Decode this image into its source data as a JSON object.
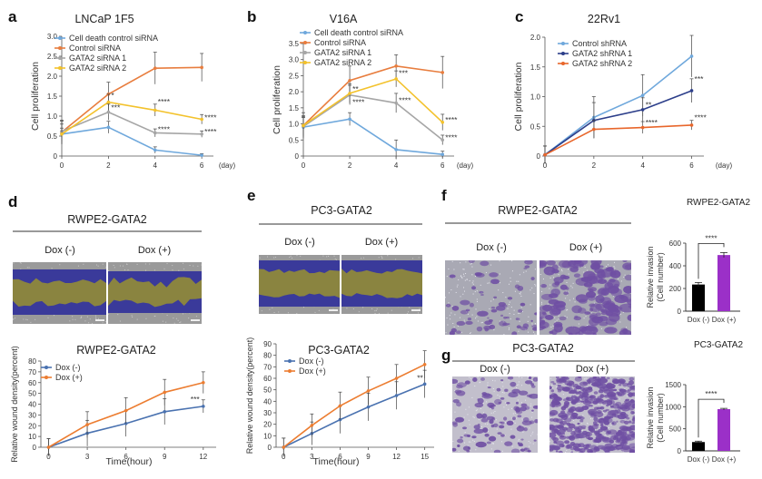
{
  "panels": {
    "a": "a",
    "b": "b",
    "c": "c",
    "d": "d",
    "e": "e",
    "f": "f",
    "g": "g"
  },
  "images": {
    "d": {
      "title": "RWPE2-GATA2",
      "left": "Dox (-)",
      "right": "Dox (+)",
      "colors": {
        "gap": "#8a8440",
        "edge": "#3a3a9a",
        "bg": "#9a9a9a"
      }
    },
    "e": {
      "title": "PC3-GATA2",
      "left": "Dox (-)",
      "right": "Dox (+)",
      "colors": {
        "gap": "#8a8440",
        "edge": "#3a3a9a",
        "bg": "#9a9a9a"
      }
    },
    "f": {
      "title": "RWPE2-GATA2",
      "left": "Dox (-)",
      "right": "Dox (+)",
      "colors": {
        "stain": "#6f4fa3",
        "bg": "#a9a9b4"
      }
    },
    "g": {
      "title": "PC3-GATA2",
      "left": "Dox (-)",
      "right": "Dox (+)",
      "colors": {
        "stain": "#6f4fa3",
        "bg": "#c2bfcc"
      }
    }
  },
  "chart_data": [
    {
      "id": "a",
      "type": "line",
      "title": "LNCaP 1F5",
      "xlabel": "(day)",
      "ylabel": "Cell proliferation",
      "x": [
        0,
        2,
        4,
        6
      ],
      "xlim": [
        0,
        6.5
      ],
      "ylim": [
        0,
        3.0
      ],
      "yticks": [
        "0",
        "0.5",
        "1.0",
        "1.5",
        "2.0",
        "2.5",
        "3.0"
      ],
      "xticks": [
        "0",
        "2",
        "4",
        "6"
      ],
      "legend_position": "top-left",
      "series": [
        {
          "name": "Cell death control siRNA",
          "color": "#6fa8dc",
          "values": [
            0.55,
            0.72,
            0.15,
            0.02
          ],
          "err": [
            0.15,
            0.15,
            0.08,
            0.04
          ]
        },
        {
          "name": "Control siRNA",
          "color": "#e87d3e",
          "values": [
            0.6,
            1.55,
            2.2,
            2.22
          ],
          "err": [
            0.3,
            0.3,
            0.4,
            0.35
          ]
        },
        {
          "name": "GATA2 siRNA 1",
          "color": "#a6a6a6",
          "values": [
            0.62,
            1.1,
            0.58,
            0.55
          ],
          "err": [
            0.25,
            0.2,
            0.1,
            0.08
          ]
        },
        {
          "name": "GATA2 siRNA 2",
          "color": "#f3c22c",
          "values": [
            0.55,
            1.35,
            1.15,
            0.92
          ],
          "err": [
            0.25,
            0.2,
            0.15,
            0.12
          ]
        }
      ],
      "annotations": [
        {
          "x": 2,
          "y": 1.45,
          "text": "*"
        },
        {
          "x": 2,
          "y": 1.15,
          "text": "***"
        },
        {
          "x": 4,
          "y": 1.3,
          "text": "****"
        },
        {
          "x": 4,
          "y": 0.6,
          "text": "****"
        },
        {
          "x": 6,
          "y": 0.9,
          "text": "****"
        },
        {
          "x": 6,
          "y": 0.55,
          "text": "****"
        }
      ]
    },
    {
      "id": "b",
      "type": "line",
      "title": "V16A",
      "xlabel": "(day)",
      "ylabel": "Cell proliferation",
      "x": [
        0,
        2,
        4,
        6
      ],
      "xlim": [
        0,
        6.5
      ],
      "ylim": [
        0,
        3.5
      ],
      "yticks": [
        "0",
        "0.5",
        "1.0",
        "1.5",
        "2.0",
        "2.5",
        "3.0",
        "3.5"
      ],
      "xticks": [
        "0",
        "2",
        "4",
        "6"
      ],
      "legend_position": "top",
      "series": [
        {
          "name": "Cell death control siRNA",
          "color": "#6fa8dc",
          "values": [
            0.9,
            1.15,
            0.2,
            0.05
          ],
          "err": [
            0.3,
            0.2,
            0.3,
            0.1
          ]
        },
        {
          "name": "Control siRNA",
          "color": "#e87d3e",
          "values": [
            0.95,
            2.35,
            2.8,
            2.6
          ],
          "err": [
            0.4,
            0.45,
            0.35,
            0.5
          ]
        },
        {
          "name": "GATA2 siRNA 1",
          "color": "#a6a6a6",
          "values": [
            0.92,
            1.9,
            1.65,
            0.5
          ],
          "err": [
            0.3,
            0.3,
            0.3,
            0.15
          ]
        },
        {
          "name": "GATA2 siRNA 2",
          "color": "#f3c22c",
          "values": [
            0.95,
            1.95,
            2.4,
            1.05
          ],
          "err": [
            0.3,
            0.3,
            0.25,
            0.25
          ]
        }
      ],
      "annotations": [
        {
          "x": 2,
          "y": 2.0,
          "text": "**"
        },
        {
          "x": 2,
          "y": 1.6,
          "text": "****"
        },
        {
          "x": 4,
          "y": 2.5,
          "text": "***"
        },
        {
          "x": 4,
          "y": 1.65,
          "text": "****"
        },
        {
          "x": 6,
          "y": 1.05,
          "text": "****"
        },
        {
          "x": 6,
          "y": 0.5,
          "text": "****"
        }
      ]
    },
    {
      "id": "c",
      "type": "line",
      "title": "22Rv1",
      "xlabel": "(day)",
      "ylabel": "Cell proliferation",
      "x": [
        0,
        2,
        4,
        6
      ],
      "xlim": [
        0,
        6.5
      ],
      "ylim": [
        0,
        2.0
      ],
      "yticks": [
        "0",
        "0.5",
        "1.0",
        "1.5",
        "2.0"
      ],
      "xticks": [
        "0",
        "2",
        "4",
        "6"
      ],
      "legend_position": "top-left",
      "series": [
        {
          "name": "Control shRNA",
          "color": "#6fa8dc",
          "values": [
            0.02,
            0.65,
            1.02,
            1.68
          ],
          "err": [
            0.15,
            0.35,
            0.35,
            0.35
          ]
        },
        {
          "name": "GATA2 shRNA 1",
          "color": "#2c3e8a",
          "values": [
            0.02,
            0.6,
            0.78,
            1.1
          ],
          "err": [
            0.15,
            0.3,
            0.2,
            0.2
          ]
        },
        {
          "name": "GATA2 shRNA 2",
          "color": "#e8662b",
          "values": [
            0.02,
            0.45,
            0.48,
            0.52
          ],
          "err": [
            0.15,
            0.15,
            0.1,
            0.08
          ]
        }
      ],
      "annotations": [
        {
          "x": 6,
          "y": 1.25,
          "text": "***"
        },
        {
          "x": 4,
          "y": 0.82,
          "text": "**"
        },
        {
          "x": 4,
          "y": 0.52,
          "text": "****"
        },
        {
          "x": 6,
          "y": 0.6,
          "text": "****"
        }
      ]
    },
    {
      "id": "d",
      "type": "line",
      "title": "RWPE2-GATA2",
      "xlabel": "Time(hour)",
      "ylabel": "Relative wound density(percent)",
      "x": [
        0,
        3,
        6,
        9,
        12
      ],
      "xlim": [
        -0.6,
        13
      ],
      "ylim": [
        0,
        80
      ],
      "yticks": [
        "0",
        "10",
        "20",
        "30",
        "40",
        "50",
        "60",
        "70",
        "80"
      ],
      "xticks": [
        "0",
        "3",
        "6",
        "9",
        "12"
      ],
      "legend_position": "top-left",
      "series": [
        {
          "name": "Dox (-)",
          "color": "#4a72b0",
          "values": [
            0,
            13,
            22,
            33,
            38
          ],
          "err": [
            8,
            12,
            12,
            12,
            6
          ]
        },
        {
          "name": "Dox (+)",
          "color": "#ec7d31",
          "values": [
            0,
            21,
            34,
            51,
            60
          ],
          "err": [
            8,
            12,
            12,
            12,
            10
          ]
        }
      ],
      "annotations": [
        {
          "x": 10.8,
          "y": 42,
          "text": "***"
        }
      ]
    },
    {
      "id": "e",
      "type": "line",
      "title": "PC3-GATA2",
      "xlabel": "Time(hour)",
      "ylabel": "Relative wound density(percent)",
      "x": [
        0,
        3,
        6,
        9,
        12,
        15
      ],
      "xlim": [
        -0.8,
        16
      ],
      "ylim": [
        0,
        90
      ],
      "yticks": [
        "0",
        "10",
        "20",
        "30",
        "40",
        "50",
        "60",
        "70",
        "80",
        "90"
      ],
      "xticks": [
        "0",
        "3",
        "6",
        "9",
        "12",
        "15"
      ],
      "legend_position": "top-left",
      "series": [
        {
          "name": "Dox (-)",
          "color": "#4a72b0",
          "values": [
            0,
            12,
            24,
            35,
            45,
            55
          ],
          "err": [
            8,
            10,
            12,
            12,
            12,
            12
          ]
        },
        {
          "name": "Dox (+)",
          "color": "#ec7d31",
          "values": [
            0,
            19,
            36,
            49,
            60,
            72
          ],
          "err": [
            8,
            10,
            12,
            12,
            12,
            12
          ]
        }
      ],
      "annotations": [
        {
          "x": 13.9,
          "y": 58,
          "text": "**"
        }
      ]
    },
    {
      "id": "f",
      "type": "bar",
      "title": "RWPE2-GATA2",
      "ylabel": "Relative invasion\n(Cell number)",
      "categories": [
        "Dox (-)",
        "Dox (+)"
      ],
      "values": [
        235,
        495
      ],
      "err": [
        18,
        22
      ],
      "colors": [
        "#000000",
        "#9b30c8"
      ],
      "ylim": [
        0,
        600
      ],
      "yticks": [
        "0",
        "200",
        "400",
        "600"
      ],
      "significance": "****"
    },
    {
      "id": "g",
      "type": "bar",
      "title": "PC3-GATA2",
      "ylabel": "Relative invasion\n(Cell number)",
      "categories": [
        "Dox (-)",
        "Dox (+)"
      ],
      "values": [
        200,
        945
      ],
      "err": [
        20,
        18
      ],
      "colors": [
        "#000000",
        "#9b30c8"
      ],
      "ylim": [
        0,
        1500
      ],
      "yticks": [
        "0",
        "500",
        "1000",
        "1500"
      ],
      "significance": "****"
    }
  ]
}
